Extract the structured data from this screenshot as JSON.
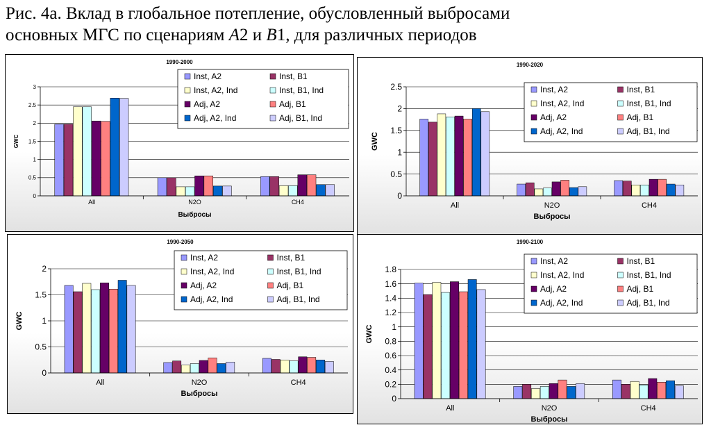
{
  "figure_title": {
    "line1": "Рис. 4а. Вклад в глобальное потепление, обусловленный выбросами",
    "line2_prefix": "основных МГС по сценариям ",
    "scenario_a": "A",
    "scenario_a_num": "2",
    "conj": " и ",
    "scenario_b": "B",
    "scenario_b_num": "1",
    "line2_suffix": ", для различных периодов"
  },
  "colors": {
    "Inst, A2": "#9999ff",
    "Inst, B1": "#993366",
    "Inst, A2, Ind": "#ffffcc",
    "Inst, B1, Ind": "#ccffff",
    "Adj, A2": "#660066",
    "Adj, B1": "#ff8080",
    "Adj, A2, Ind": "#0066cc",
    "Adj, B1, Ind": "#ccccff"
  },
  "chart_data": [
    {
      "type": "bar",
      "title": "1990-2000",
      "xlabel": "Выбросы",
      "ylabel": "GWC",
      "categories": [
        "All",
        "N2O",
        "CH4"
      ],
      "ylim": [
        0,
        3
      ],
      "yticks": [
        "0",
        "0.5",
        "1",
        "1.5",
        "2",
        "2.5",
        "3"
      ],
      "grid": true,
      "legend_position": "top-right",
      "series": [
        {
          "name": "Inst, A2",
          "values": [
            1.97,
            0.5,
            0.53
          ]
        },
        {
          "name": "Inst, B1",
          "values": [
            1.97,
            0.5,
            0.53
          ]
        },
        {
          "name": "Inst, A2, Ind",
          "values": [
            2.45,
            0.25,
            0.28
          ]
        },
        {
          "name": "Inst, B1, Ind",
          "values": [
            2.45,
            0.25,
            0.28
          ]
        },
        {
          "name": "Adj, A2",
          "values": [
            2.06,
            0.55,
            0.58
          ]
        },
        {
          "name": "Adj, B1",
          "values": [
            2.05,
            0.55,
            0.58
          ]
        },
        {
          "name": "Adj, A2, Ind",
          "values": [
            2.69,
            0.27,
            0.31
          ]
        },
        {
          "name": "Adj, B1, Ind",
          "values": [
            2.68,
            0.27,
            0.31
          ]
        }
      ]
    },
    {
      "type": "bar",
      "title": "1990-2020",
      "xlabel": "Выбросы",
      "ylabel": "GWC",
      "categories": [
        "All",
        "N2O",
        "CH4"
      ],
      "ylim": [
        0,
        2.5
      ],
      "yticks": [
        "0",
        "0.5",
        "1",
        "1.5",
        "2",
        "2.5"
      ],
      "grid": true,
      "legend_position": "top-right",
      "series": [
        {
          "name": "Inst, A2",
          "values": [
            1.76,
            0.27,
            0.35
          ]
        },
        {
          "name": "Inst, B1",
          "values": [
            1.69,
            0.3,
            0.34
          ]
        },
        {
          "name": "Inst, A2, Ind",
          "values": [
            1.88,
            0.16,
            0.25
          ]
        },
        {
          "name": "Inst, B1, Ind",
          "values": [
            1.81,
            0.18,
            0.25
          ]
        },
        {
          "name": "Adj, A2",
          "values": [
            1.83,
            0.32,
            0.38
          ]
        },
        {
          "name": "Adj, B1",
          "values": [
            1.76,
            0.36,
            0.38
          ]
        },
        {
          "name": "Adj, A2, Ind",
          "values": [
            2.0,
            0.19,
            0.27
          ]
        },
        {
          "name": "Adj, B1, Ind",
          "values": [
            1.93,
            0.21,
            0.25
          ]
        }
      ]
    },
    {
      "type": "bar",
      "title": "1990-2050",
      "xlabel": "Выбросы",
      "ylabel": "GWC",
      "categories": [
        "All",
        "N2O",
        "CH4"
      ],
      "ylim": [
        0,
        2
      ],
      "yticks": [
        "0",
        "0.5",
        "1",
        "1.5",
        "2"
      ],
      "grid": true,
      "legend_position": "top-right",
      "series": [
        {
          "name": "Inst, A2",
          "values": [
            1.68,
            0.2,
            0.28
          ]
        },
        {
          "name": "Inst, B1",
          "values": [
            1.56,
            0.23,
            0.26
          ]
        },
        {
          "name": "Inst, A2, Ind",
          "values": [
            1.72,
            0.15,
            0.25
          ]
        },
        {
          "name": "Inst, B1, Ind",
          "values": [
            1.6,
            0.18,
            0.23
          ]
        },
        {
          "name": "Adj, A2",
          "values": [
            1.73,
            0.24,
            0.31
          ]
        },
        {
          "name": "Adj, B1",
          "values": [
            1.61,
            0.29,
            0.3
          ]
        },
        {
          "name": "Adj, A2, Ind",
          "values": [
            1.78,
            0.18,
            0.25
          ]
        },
        {
          "name": "Adj, B1, Ind",
          "values": [
            1.68,
            0.21,
            0.22
          ]
        }
      ]
    },
    {
      "type": "bar",
      "title": "1990-2100",
      "xlabel": "Выбросы",
      "ylabel": "GWC",
      "categories": [
        "All",
        "N2O",
        "CH4"
      ],
      "ylim": [
        0,
        1.8
      ],
      "yticks": [
        "0",
        "0.2",
        "0.4",
        "0.6",
        "0.8",
        "1",
        "1.2",
        "1.4",
        "1.6",
        "1.8"
      ],
      "grid": true,
      "legend_position": "top-right",
      "series": [
        {
          "name": "Inst, A2",
          "values": [
            1.61,
            0.17,
            0.26
          ]
        },
        {
          "name": "Inst, B1",
          "values": [
            1.45,
            0.2,
            0.2
          ]
        },
        {
          "name": "Inst, A2, Ind",
          "values": [
            1.62,
            0.14,
            0.24
          ]
        },
        {
          "name": "Inst, B1, Ind",
          "values": [
            1.48,
            0.17,
            0.19
          ]
        },
        {
          "name": "Adj, A2",
          "values": [
            1.63,
            0.21,
            0.28
          ]
        },
        {
          "name": "Adj, B1",
          "values": [
            1.49,
            0.26,
            0.23
          ]
        },
        {
          "name": "Adj, A2, Ind",
          "values": [
            1.66,
            0.17,
            0.25
          ]
        },
        {
          "name": "Adj, B1, Ind",
          "values": [
            1.52,
            0.21,
            0.18
          ]
        }
      ]
    }
  ]
}
